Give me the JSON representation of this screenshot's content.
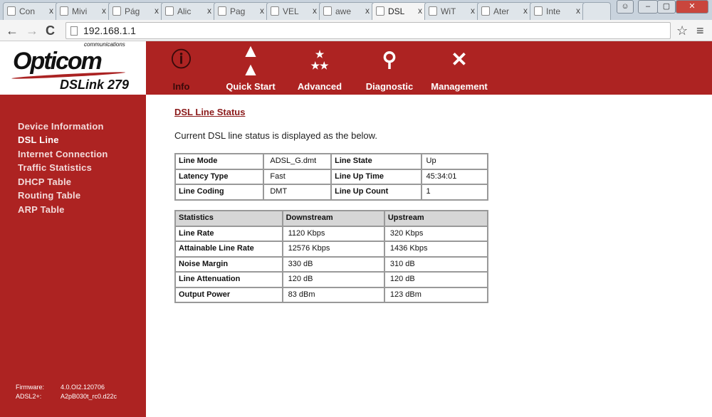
{
  "browser": {
    "tabs": [
      {
        "label": "Con"
      },
      {
        "label": "Mivi"
      },
      {
        "label": "Pág"
      },
      {
        "label": "Alic"
      },
      {
        "label": "Pag"
      },
      {
        "label": "VEL"
      },
      {
        "label": "awe"
      },
      {
        "label": "DSL",
        "active": true
      },
      {
        "label": "WiT"
      },
      {
        "label": "Ater"
      },
      {
        "label": "Inte"
      }
    ],
    "close_glyph": "x",
    "url": "192.168.1.1"
  },
  "header": {
    "brand": "Opticom",
    "brand_sub": "communications",
    "model": "DSLink 279",
    "menu": [
      {
        "label": "Info",
        "icon": "info-icon",
        "active": true
      },
      {
        "label": "Quick Start",
        "icon": "quick-start-icon"
      },
      {
        "label": "Advanced",
        "icon": "stars-icon"
      },
      {
        "label": "Diagnostic",
        "icon": "magnifier-icon"
      },
      {
        "label": "Management",
        "icon": "tools-icon"
      }
    ]
  },
  "sidebar": {
    "items": [
      {
        "label": "Device Information"
      },
      {
        "label": "DSL Line",
        "active": true
      },
      {
        "label": "Internet Connection"
      },
      {
        "label": "Traffic Statistics"
      },
      {
        "label": "DHCP Table"
      },
      {
        "label": "Routing Table"
      },
      {
        "label": "ARP Table"
      }
    ],
    "firmware_label": "Firmware:",
    "firmware": "4.0.OI2.120706",
    "adsl_label": "ADSL2+:",
    "adsl": "A2pB030t_rc0.d22c"
  },
  "main": {
    "title": "DSL Line Status",
    "description": "Current DSL line status is displayed as the below.",
    "status_rows": [
      [
        "Line Mode",
        "ADSL_G.dmt",
        "Line State",
        "Up"
      ],
      [
        "Latency Type",
        "Fast",
        "Line Up Time",
        "45:34:01"
      ],
      [
        "Line Coding",
        "DMT",
        "Line Up Count",
        "1"
      ]
    ],
    "stats_header": [
      "Statistics",
      "Downstream",
      "Upstream"
    ],
    "stats_rows": [
      [
        "Line Rate",
        "1120 Kbps",
        "320 Kbps"
      ],
      [
        "Attainable Line Rate",
        "12576 Kbps",
        "1436 Kbps"
      ],
      [
        "Noise Margin",
        "330 dB",
        "310 dB"
      ],
      [
        "Line Attenuation",
        "120 dB",
        "120 dB"
      ],
      [
        "Output Power",
        "83 dBm",
        "123 dBm"
      ]
    ]
  },
  "colors": {
    "brand_red": "#ad2322",
    "title_red": "#8b1a1a"
  }
}
